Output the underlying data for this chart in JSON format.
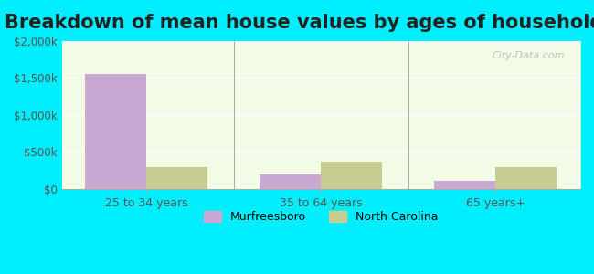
{
  "title": "Breakdown of mean house values by ages of householders",
  "categories": [
    "25 to 34 years",
    "35 to 64 years",
    "65 years+"
  ],
  "murfreesboro_values": [
    1550000,
    200000,
    110000
  ],
  "nc_values": [
    290000,
    370000,
    290000
  ],
  "ylim": [
    0,
    2000000
  ],
  "yticks": [
    0,
    500000,
    1000000,
    1500000,
    2000000
  ],
  "ytick_labels": [
    "$0",
    "$500k",
    "$1,000k",
    "$1,500k",
    "$2,000k"
  ],
  "murfreesboro_color": "#c9a8d4",
  "nc_color": "#c8cc90",
  "background_color": "#00eeff",
  "plot_bg_gradient_top": "#e8f5e0",
  "plot_bg_gradient_bottom": "#f0ffe8",
  "title_fontsize": 15,
  "legend_labels": [
    "Murfreesboro",
    "North Carolina"
  ],
  "bar_width": 0.35,
  "watermark": "City-Data.com"
}
